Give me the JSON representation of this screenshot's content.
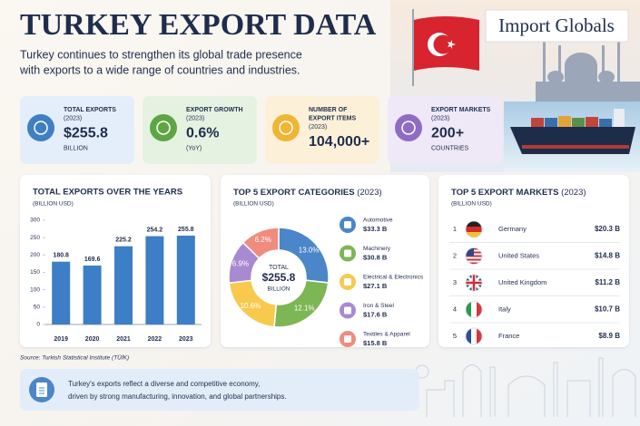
{
  "header": {
    "title": "TURKEY EXPORT DATA",
    "subtitle_lines": [
      "Turkey continues to strengthen its global trade presence",
      "with exports to a wide range of countries and industries."
    ]
  },
  "logo": "Import Globals",
  "cards": [
    {
      "label": [
        "TOTAL EXPORTS"
      ],
      "year": "(2023)",
      "value": "$255.8",
      "unit": "BILLION",
      "color": "#e4eefa",
      "icon": "#3f7fc4"
    },
    {
      "label": [
        "EXPORT GROWTH"
      ],
      "year": "(2023)",
      "value": "0.6%",
      "unit": "(YoY)",
      "color": "#e6f2e1",
      "icon": "#5ea544"
    },
    {
      "label": [
        "NUMBER OF",
        "EXPORT ITEMS"
      ],
      "year": "(2023)",
      "value": "104,000+",
      "color": "#fcf1d8",
      "icon": "#f0b532"
    },
    {
      "label": [
        "EXPORT MARKETS"
      ],
      "year": "(2023)",
      "value": "200+",
      "unit": "COUNTRIES",
      "color": "#eee8f7",
      "icon": "#8f6cc4"
    }
  ],
  "chart_data": [
    {
      "type": "bar",
      "title": "TOTAL EXPORTS OVER THE YEARS",
      "subtitle": "(BILLION USD)",
      "categories": [
        "2019",
        "2020",
        "2021",
        "2022",
        "2023"
      ],
      "values": [
        180.8,
        169.6,
        225.2,
        254.2,
        255.8
      ],
      "color": "#3d7fc6",
      "ylim": [
        0,
        300
      ],
      "yticks": [
        0,
        50,
        100,
        150,
        200,
        250,
        300
      ]
    },
    {
      "type": "pie",
      "title": "TOP 5 EXPORT CATEGORIES",
      "title_note": "(2023)",
      "subtitle": "(BILLION USD)",
      "categories": [
        "Automotive",
        "Machinery",
        "Electrical & Electronics",
        "Iron & Steel",
        "Textiles & Apparel"
      ],
      "values": [
        33.3,
        30.8,
        27.1,
        17.6,
        15.8
      ],
      "value_labels": [
        "$33.3 B",
        "$30.8 B",
        "$27.1 B",
        "$17.6 B",
        "$15.8 B"
      ],
      "shares": [
        {
          "value": 13.0,
          "label": "13.0%"
        },
        {
          "value": 12.1,
          "label": "12.1%"
        },
        {
          "value": 10.6,
          "label": "10.6%"
        },
        {
          "value": 6.9,
          "label": "6.9%"
        },
        {
          "value": 6.2,
          "label": "6.2%"
        }
      ],
      "colors": [
        "#4a86c8",
        "#7db654",
        "#f7ca4d",
        "#a88ad0",
        "#ef8c7e"
      ],
      "center": [
        "TOTAL",
        "$255.8",
        "BILLION"
      ]
    }
  ],
  "markets": {
    "title": "TOP 5 EXPORT MARKETS",
    "title_note": "(2023)",
    "subtitle": "(BILLION USD)",
    "rows": [
      [
        "1",
        "Germany",
        "$20.3 B"
      ],
      [
        "2",
        "United States",
        "$14.8 B"
      ],
      [
        "3",
        "United Kingdom",
        "$11.2 B"
      ],
      [
        "4",
        "Italy",
        "$10.7 B"
      ],
      [
        "5",
        "France",
        "$8.9 B"
      ]
    ]
  },
  "source": "Source: Turkish Statistical Institute (TÜİK)",
  "footer": [
    "Turkey's exports reflect a diverse and competitive economy,",
    "driven by strong manufacturing, innovation, and global partnerships."
  ]
}
